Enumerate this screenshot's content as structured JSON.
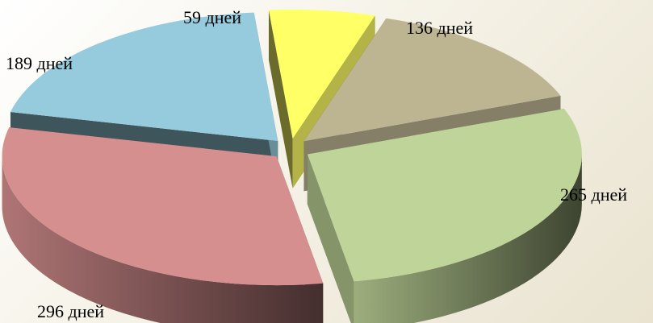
{
  "chart_data": {
    "type": "pie",
    "style": "3d-exploded",
    "slices": [
      {
        "label": "59 дней",
        "value": 59,
        "color": "#ffff66"
      },
      {
        "label": "136 дней",
        "value": 136,
        "color": "#bdb592"
      },
      {
        "label": "265 дней",
        "value": 265,
        "color": "#bfd498"
      },
      {
        "label": "296 дней",
        "value": 296,
        "color": "#d58f8f"
      },
      {
        "label": "189 дней",
        "value": 189,
        "color": "#95cbdc"
      }
    ]
  }
}
